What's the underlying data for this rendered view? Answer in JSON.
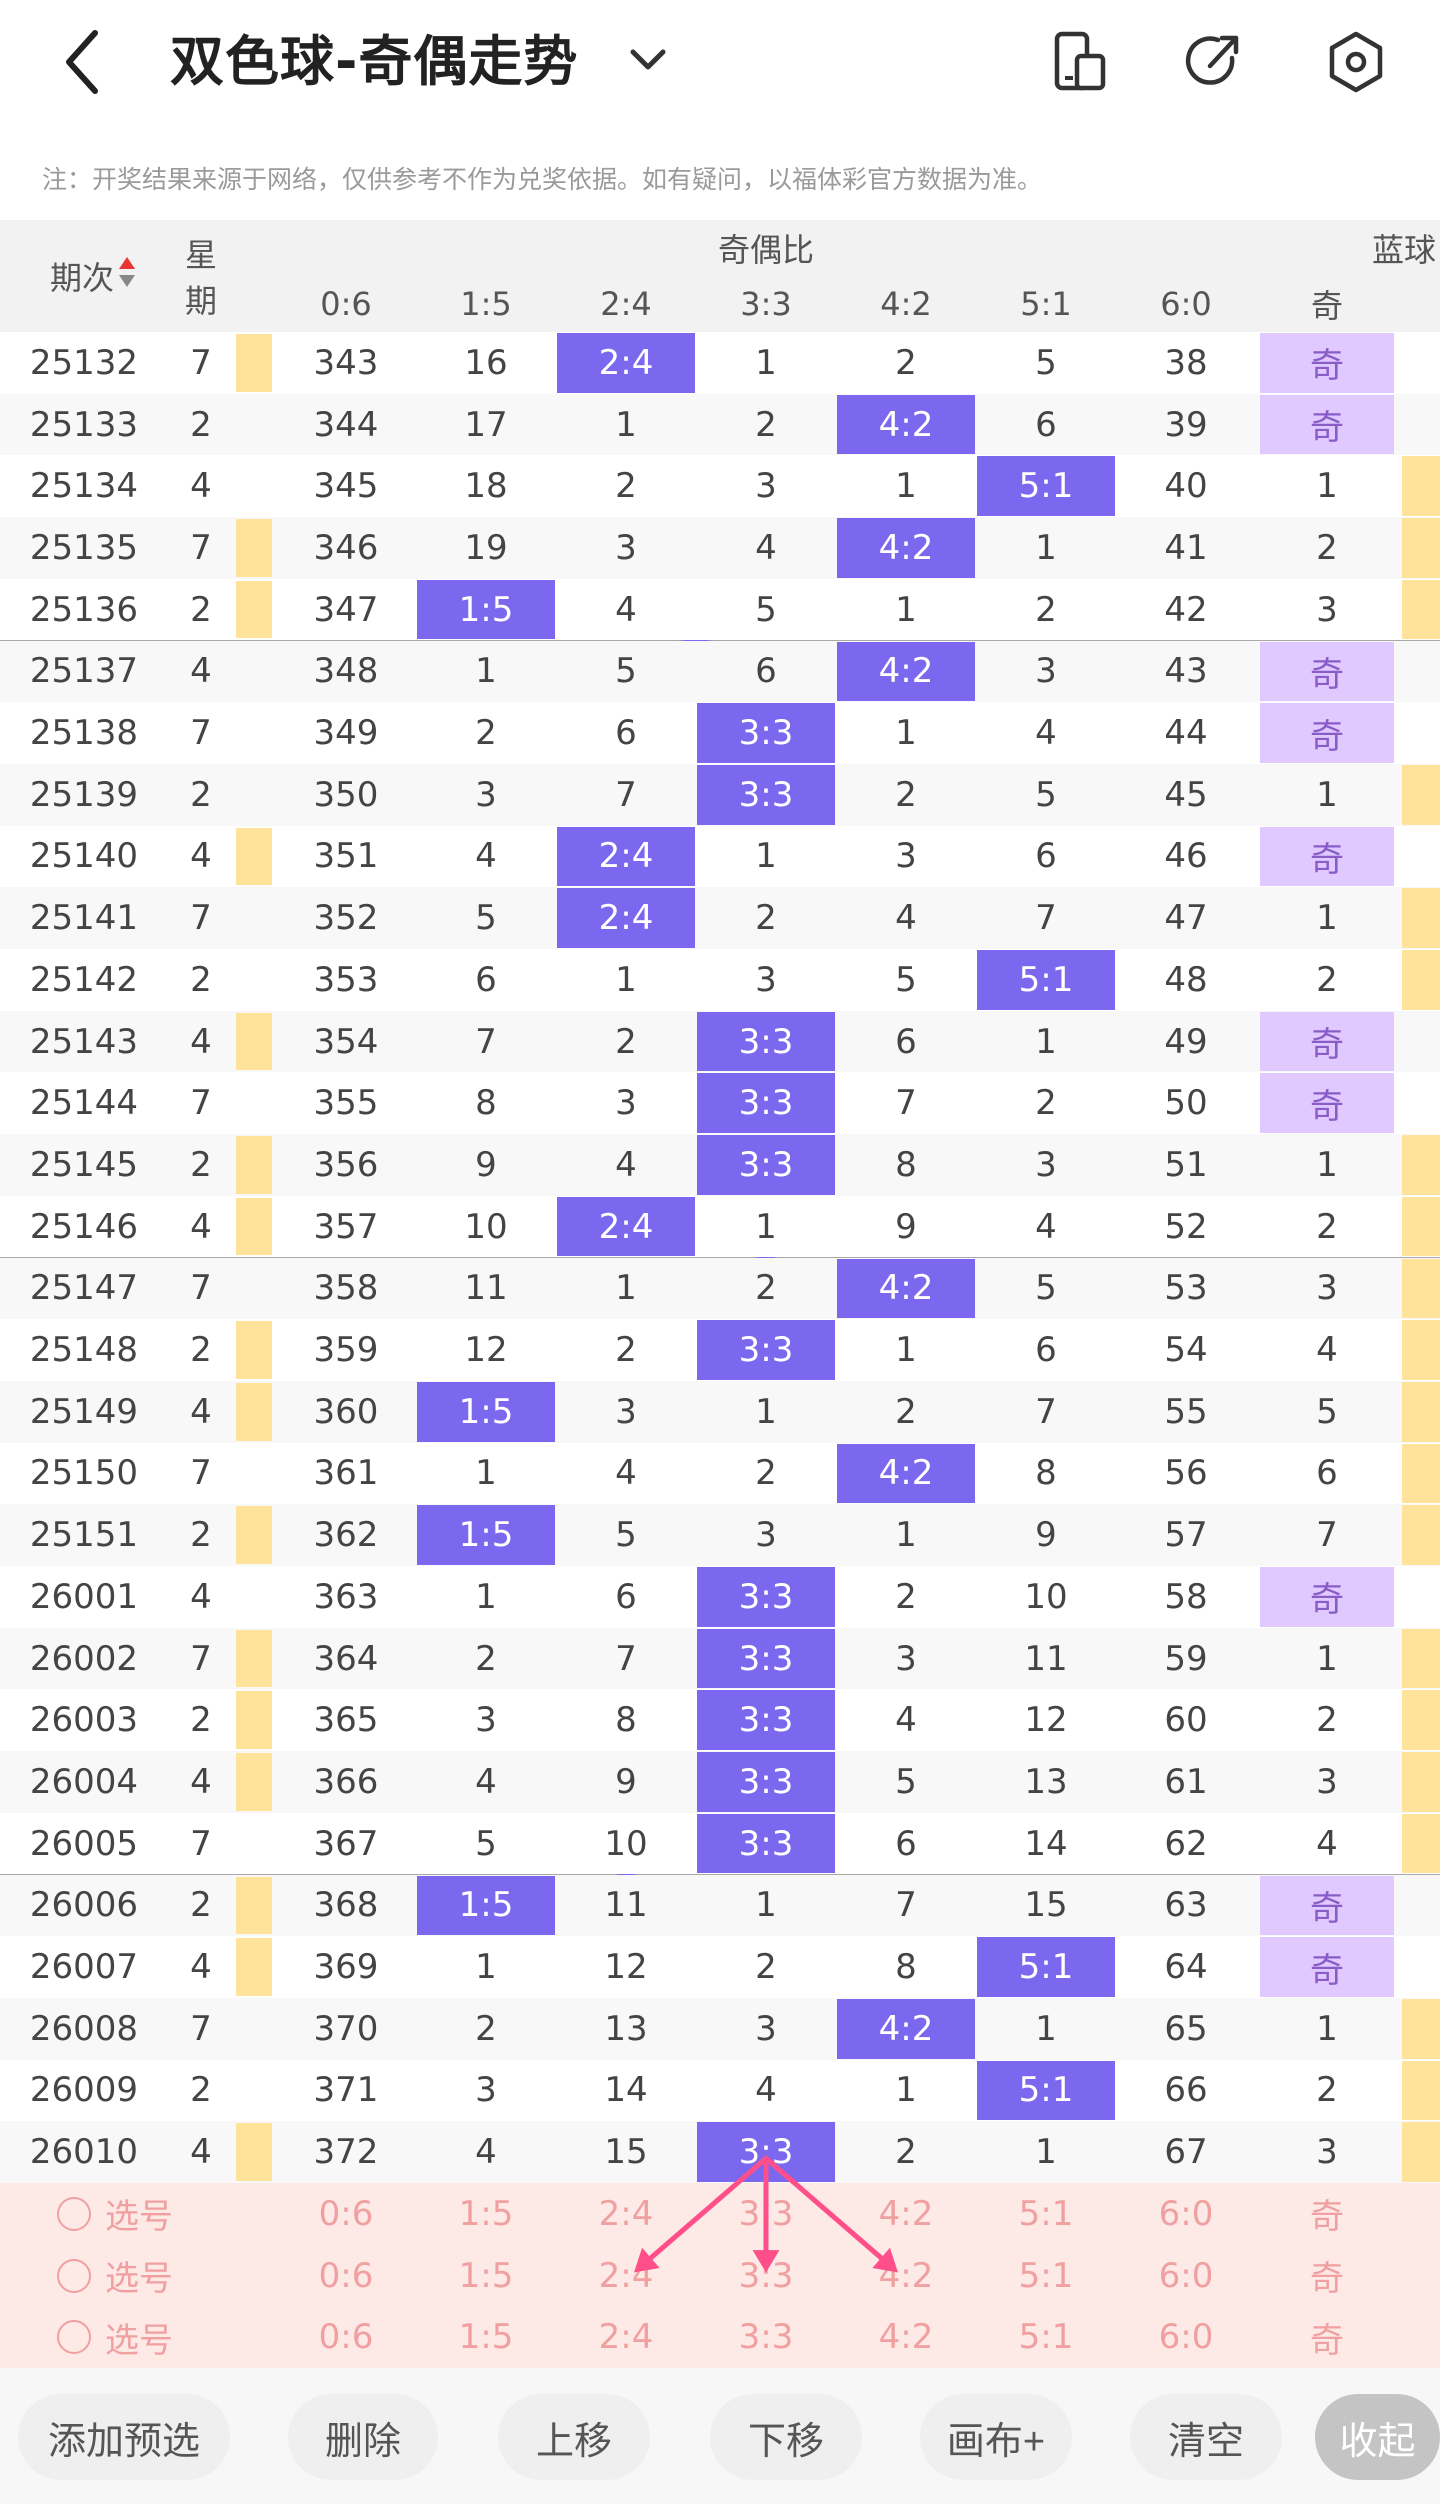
{
  "header": {
    "title": "双色球-奇偶走势",
    "icons": [
      "back-icon",
      "chevron-down-icon",
      "phone-icon",
      "share-icon",
      "settings-icon"
    ]
  },
  "notice": "注：开奖结果来源于网络，仅供参考不作为兑奖依据。如有疑问，以福体彩官方数据为准。",
  "table": {
    "col_period": "期次",
    "col_weekday": "星期",
    "group_ratio": "奇偶比",
    "group_blue": "蓝球",
    "ratio_headers": [
      "0:6",
      "1:5",
      "2:4",
      "3:3",
      "4:2",
      "5:1",
      "6:0"
    ],
    "blue_header": "奇",
    "rows": [
      {
        "period": "25132",
        "week": "7",
        "y": true,
        "hit": 2,
        "vals": [
          "343",
          "16",
          "2:4",
          "1",
          "2",
          "5",
          "38"
        ],
        "blue": "奇",
        "by": false
      },
      {
        "period": "25133",
        "week": "2",
        "y": false,
        "hit": 4,
        "vals": [
          "344",
          "17",
          "1",
          "2",
          "4:2",
          "6",
          "39"
        ],
        "blue": "奇",
        "by": false
      },
      {
        "period": "25134",
        "week": "4",
        "y": false,
        "hit": 5,
        "vals": [
          "345",
          "18",
          "2",
          "3",
          "1",
          "5:1",
          "40"
        ],
        "blue": "1",
        "by": true
      },
      {
        "period": "25135",
        "week": "7",
        "y": true,
        "hit": 4,
        "vals": [
          "346",
          "19",
          "3",
          "4",
          "4:2",
          "1",
          "41"
        ],
        "blue": "2",
        "by": true
      },
      {
        "period": "25136",
        "week": "2",
        "y": true,
        "hit": 1,
        "vals": [
          "347",
          "1:5",
          "4",
          "5",
          "1",
          "2",
          "42"
        ],
        "blue": "3",
        "by": true
      },
      {
        "period": "25137",
        "week": "4",
        "y": false,
        "hit": 4,
        "vals": [
          "348",
          "1",
          "5",
          "6",
          "4:2",
          "3",
          "43"
        ],
        "blue": "奇",
        "by": false
      },
      {
        "period": "25138",
        "week": "7",
        "y": false,
        "hit": 3,
        "vals": [
          "349",
          "2",
          "6",
          "3:3",
          "1",
          "4",
          "44"
        ],
        "blue": "奇",
        "by": false
      },
      {
        "period": "25139",
        "week": "2",
        "y": false,
        "hit": 3,
        "vals": [
          "350",
          "3",
          "7",
          "3:3",
          "2",
          "5",
          "45"
        ],
        "blue": "1",
        "by": true
      },
      {
        "period": "25140",
        "week": "4",
        "y": true,
        "hit": 2,
        "vals": [
          "351",
          "4",
          "2:4",
          "1",
          "3",
          "6",
          "46"
        ],
        "blue": "奇",
        "by": false
      },
      {
        "period": "25141",
        "week": "7",
        "y": false,
        "hit": 2,
        "vals": [
          "352",
          "5",
          "2:4",
          "2",
          "4",
          "7",
          "47"
        ],
        "blue": "1",
        "by": true
      },
      {
        "period": "25142",
        "week": "2",
        "y": false,
        "hit": 5,
        "vals": [
          "353",
          "6",
          "1",
          "3",
          "5",
          "5:1",
          "48"
        ],
        "blue": "2",
        "by": true
      },
      {
        "period": "25143",
        "week": "4",
        "y": true,
        "hit": 3,
        "vals": [
          "354",
          "7",
          "2",
          "3:3",
          "6",
          "1",
          "49"
        ],
        "blue": "奇",
        "by": false
      },
      {
        "period": "25144",
        "week": "7",
        "y": false,
        "hit": 3,
        "vals": [
          "355",
          "8",
          "3",
          "3:3",
          "7",
          "2",
          "50"
        ],
        "blue": "奇",
        "by": false
      },
      {
        "period": "25145",
        "week": "2",
        "y": true,
        "hit": 3,
        "vals": [
          "356",
          "9",
          "4",
          "3:3",
          "8",
          "3",
          "51"
        ],
        "blue": "1",
        "by": true
      },
      {
        "period": "25146",
        "week": "4",
        "y": true,
        "hit": 2,
        "vals": [
          "357",
          "10",
          "2:4",
          "1",
          "9",
          "4",
          "52"
        ],
        "blue": "2",
        "by": true
      },
      {
        "period": "25147",
        "week": "7",
        "y": false,
        "hit": 4,
        "vals": [
          "358",
          "11",
          "1",
          "2",
          "4:2",
          "5",
          "53"
        ],
        "blue": "3",
        "by": true
      },
      {
        "period": "25148",
        "week": "2",
        "y": true,
        "hit": 3,
        "vals": [
          "359",
          "12",
          "2",
          "3:3",
          "1",
          "6",
          "54"
        ],
        "blue": "4",
        "by": true
      },
      {
        "period": "25149",
        "week": "4",
        "y": true,
        "hit": 1,
        "vals": [
          "360",
          "1:5",
          "3",
          "1",
          "2",
          "7",
          "55"
        ],
        "blue": "5",
        "by": true
      },
      {
        "period": "25150",
        "week": "7",
        "y": false,
        "hit": 4,
        "vals": [
          "361",
          "1",
          "4",
          "2",
          "4:2",
          "8",
          "56"
        ],
        "blue": "6",
        "by": true
      },
      {
        "period": "25151",
        "week": "2",
        "y": true,
        "hit": 1,
        "vals": [
          "362",
          "1:5",
          "5",
          "3",
          "1",
          "9",
          "57"
        ],
        "blue": "7",
        "by": true
      },
      {
        "period": "26001",
        "week": "4",
        "y": false,
        "hit": 3,
        "vals": [
          "363",
          "1",
          "6",
          "3:3",
          "2",
          "10",
          "58"
        ],
        "blue": "奇",
        "by": false
      },
      {
        "period": "26002",
        "week": "7",
        "y": true,
        "hit": 3,
        "vals": [
          "364",
          "2",
          "7",
          "3:3",
          "3",
          "11",
          "59"
        ],
        "blue": "1",
        "by": true
      },
      {
        "period": "26003",
        "week": "2",
        "y": true,
        "hit": 3,
        "vals": [
          "365",
          "3",
          "8",
          "3:3",
          "4",
          "12",
          "60"
        ],
        "blue": "2",
        "by": true
      },
      {
        "period": "26004",
        "week": "4",
        "y": true,
        "hit": 3,
        "vals": [
          "366",
          "4",
          "9",
          "3:3",
          "5",
          "13",
          "61"
        ],
        "blue": "3",
        "by": true
      },
      {
        "period": "26005",
        "week": "7",
        "y": false,
        "hit": 3,
        "vals": [
          "367",
          "5",
          "10",
          "3:3",
          "6",
          "14",
          "62"
        ],
        "blue": "4",
        "by": true
      },
      {
        "period": "26006",
        "week": "2",
        "y": true,
        "hit": 1,
        "vals": [
          "368",
          "1:5",
          "11",
          "1",
          "7",
          "15",
          "63"
        ],
        "blue": "奇",
        "by": false
      },
      {
        "period": "26007",
        "week": "4",
        "y": true,
        "hit": 5,
        "vals": [
          "369",
          "1",
          "12",
          "2",
          "8",
          "5:1",
          "64"
        ],
        "blue": "奇",
        "by": false
      },
      {
        "period": "26008",
        "week": "7",
        "y": false,
        "hit": 4,
        "vals": [
          "370",
          "2",
          "13",
          "3",
          "4:2",
          "1",
          "65"
        ],
        "blue": "1",
        "by": true
      },
      {
        "period": "26009",
        "week": "2",
        "y": false,
        "hit": 5,
        "vals": [
          "371",
          "3",
          "14",
          "4",
          "1",
          "5:1",
          "66"
        ],
        "blue": "2",
        "by": true
      },
      {
        "period": "26010",
        "week": "4",
        "y": true,
        "hit": 3,
        "vals": [
          "372",
          "4",
          "15",
          "3:3",
          "2",
          "1",
          "67"
        ],
        "blue": "3",
        "by": true
      }
    ],
    "select_rows": [
      {
        "label": "选号",
        "vals": [
          "0:6",
          "1:5",
          "2:4",
          "3:3",
          "4:2",
          "5:1",
          "6:0"
        ],
        "blue": "奇"
      },
      {
        "label": "选号",
        "vals": [
          "0:6",
          "1:5",
          "2:4",
          "3:3",
          "4:2",
          "5:1",
          "6:0"
        ],
        "blue": "奇"
      },
      {
        "label": "选号",
        "vals": [
          "0:6",
          "1:5",
          "2:4",
          "3:3",
          "4:2",
          "5:1",
          "6:0"
        ],
        "blue": "奇"
      }
    ]
  },
  "toolbar": {
    "buttons": [
      "添加预选",
      "删除",
      "上移",
      "下移",
      "画布+",
      "清空",
      "收起"
    ]
  },
  "colors": {
    "highlight": "#7b68ee",
    "blue_odd": "#e0c9ff",
    "yellow": "#ffe39a",
    "line": "#7b68ee",
    "arrow": "#ff4f8a"
  }
}
